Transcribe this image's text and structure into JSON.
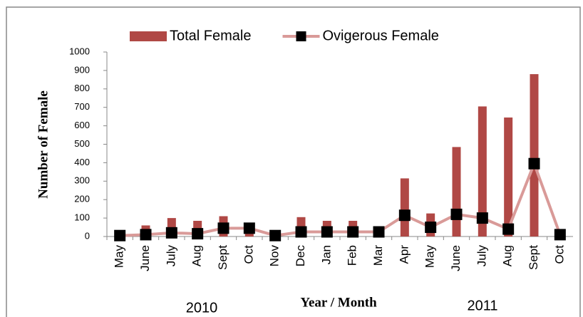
{
  "chart_data": {
    "type": "bar_line",
    "xlabel": "Year / Month",
    "ylabel": "Number of Female",
    "year_labels": [
      "2010",
      "2011"
    ],
    "categories": [
      "May",
      "June",
      "July",
      "Aug",
      "Sept",
      "Oct",
      "Nov",
      "Dec",
      "Jan",
      "Feb",
      "Mar",
      "Apr",
      "May",
      "June",
      "July",
      "Aug",
      "Sept",
      "Oct"
    ],
    "series": [
      {
        "name": "Total Female",
        "kind": "bar",
        "color": "#b04845",
        "values": [
          10,
          60,
          100,
          85,
          110,
          50,
          5,
          105,
          85,
          85,
          25,
          315,
          125,
          485,
          705,
          645,
          880,
          10
        ]
      },
      {
        "name": "Ovigerous Female",
        "kind": "line",
        "color": "#d99a98",
        "marker_color": "#000000",
        "values": [
          5,
          10,
          20,
          15,
          45,
          45,
          5,
          25,
          25,
          25,
          25,
          115,
          50,
          120,
          100,
          40,
          395,
          10
        ]
      }
    ],
    "ylim": [
      0,
      1000
    ],
    "yticks": [
      0,
      100,
      200,
      300,
      400,
      500,
      600,
      700,
      800,
      900,
      1000
    ]
  }
}
